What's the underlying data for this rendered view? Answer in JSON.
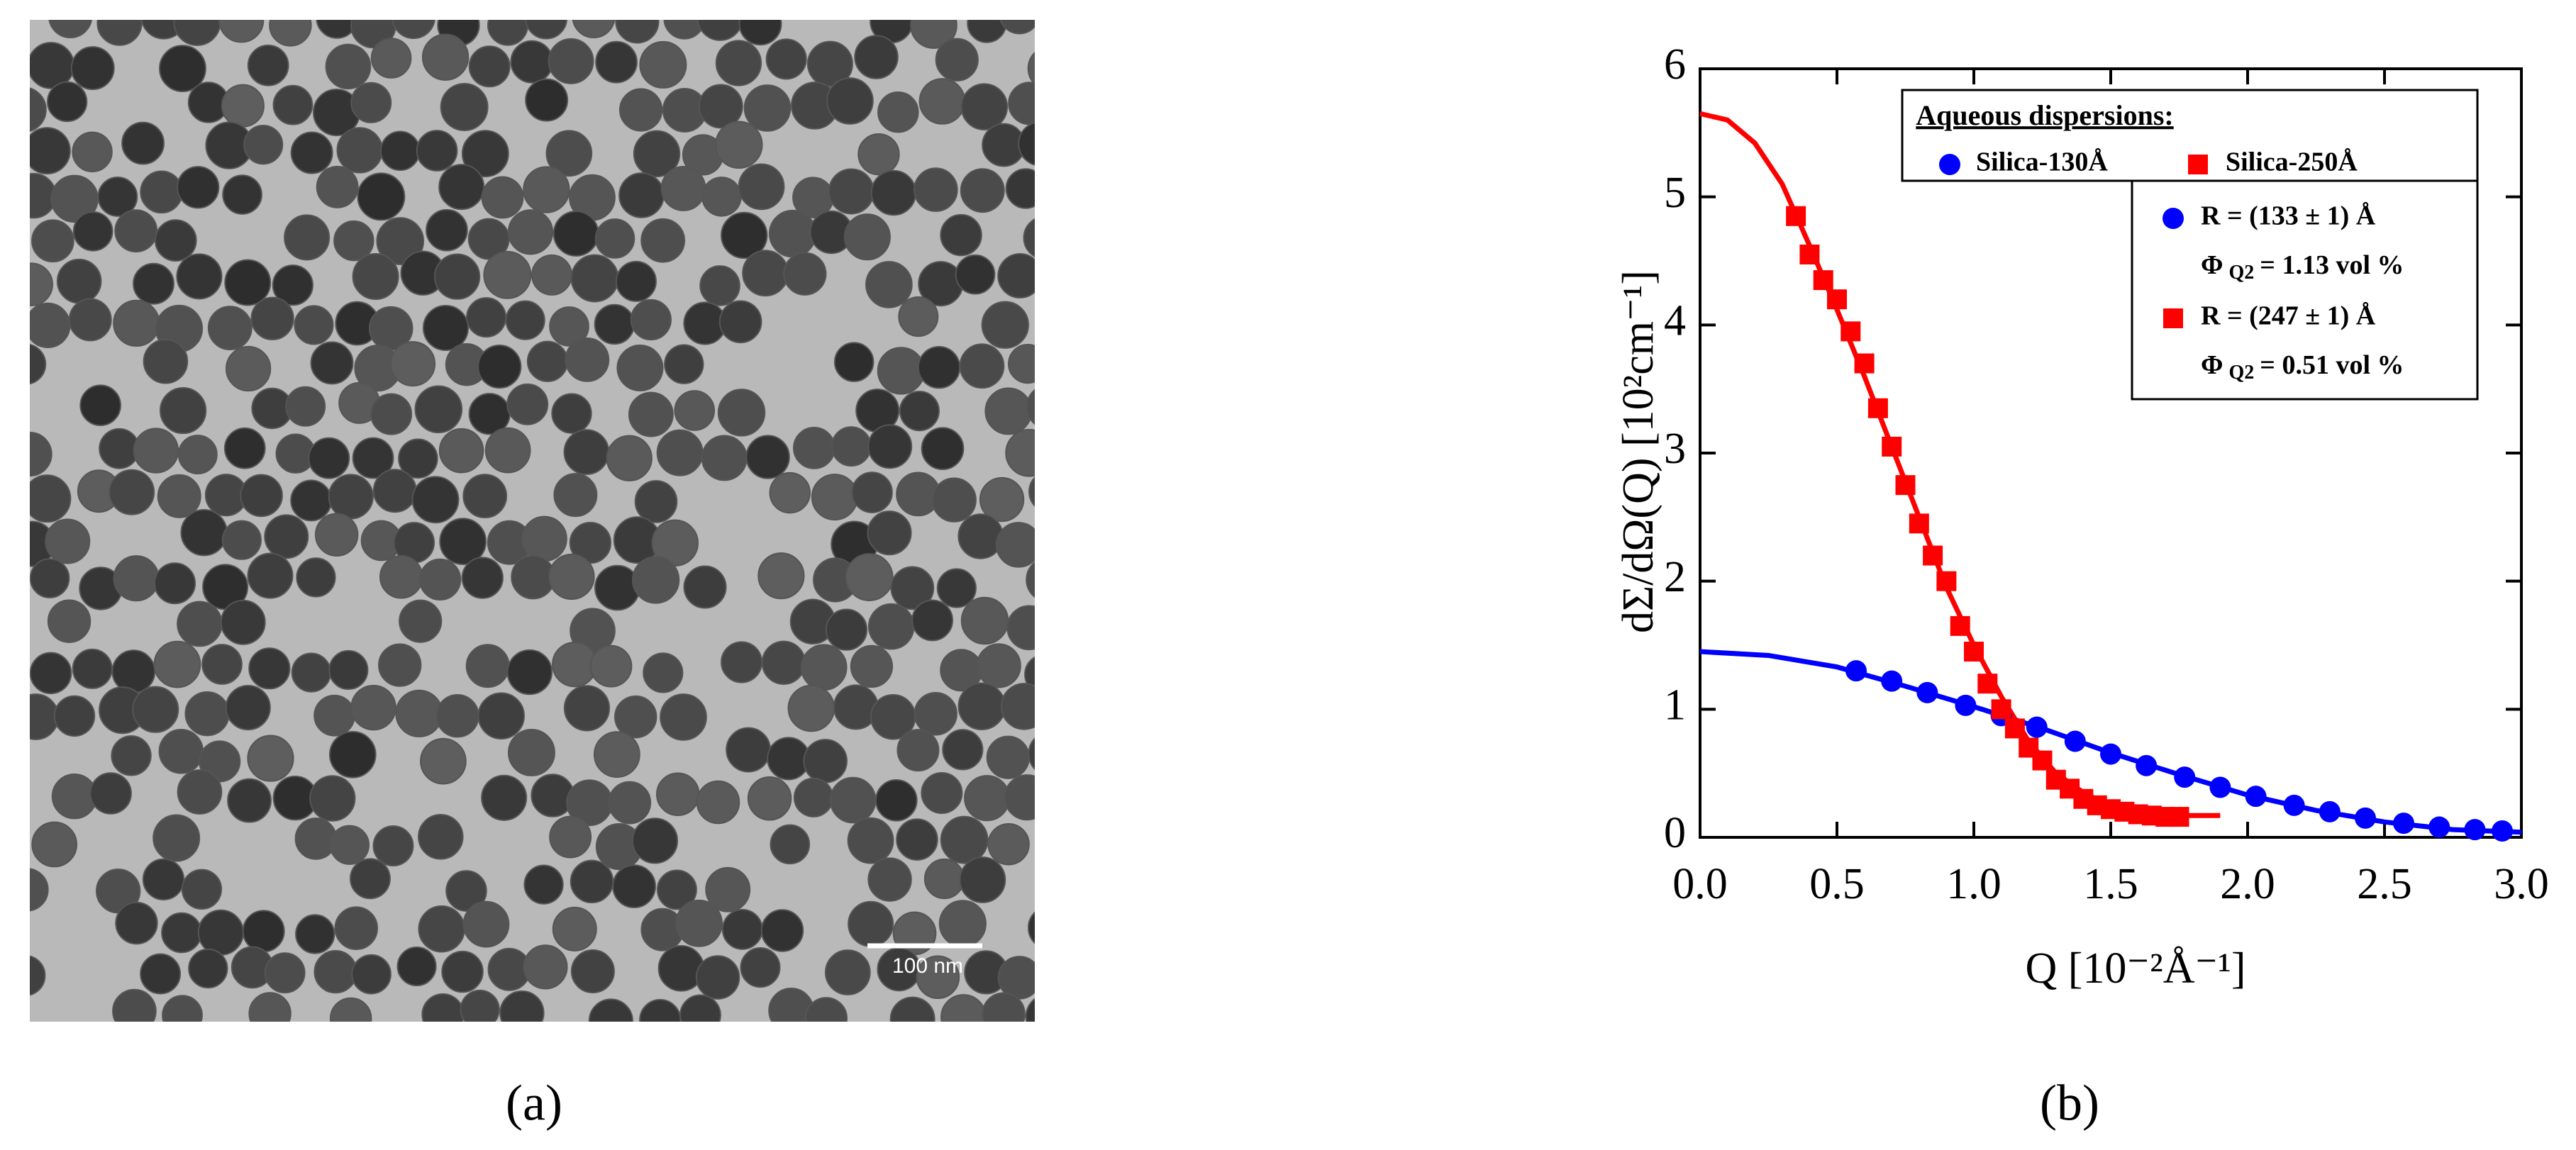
{
  "micrograph": {
    "caption": "(a)",
    "scale_bar_label": "100 nm"
  },
  "chart_data": {
    "type": "scatter",
    "caption": "(b)",
    "x_label": "Q [10⁻²Å⁻¹]",
    "y_label": "dΣ/dΩ(Q) [10²cm⁻¹]",
    "xlim": [
      0,
      3
    ],
    "ylim": [
      0,
      6
    ],
    "xticks": [
      {
        "value": 0,
        "label": "0.0"
      },
      0.5,
      {
        "value": 1,
        "label": "1.0"
      },
      1.5,
      {
        "value": 2,
        "label": "2.0"
      },
      2.5,
      {
        "value": 3,
        "label": "3.0"
      }
    ],
    "yticks": [
      0,
      1,
      2,
      3,
      4,
      5,
      6
    ],
    "legend_title": "Aqueous dispersions:",
    "legend": "upper right",
    "series": [
      {
        "name": "Silica-130Å",
        "color": "#0000ff",
        "marker": "circle",
        "x": [
          0.57,
          0.7,
          0.83,
          0.97,
          1.1,
          1.23,
          1.37,
          1.5,
          1.63,
          1.77,
          1.9,
          2.03,
          2.17,
          2.3,
          2.43,
          2.57,
          2.7,
          2.83,
          2.93
        ],
        "values": [
          1.3,
          1.22,
          1.13,
          1.03,
          0.95,
          0.86,
          0.75,
          0.65,
          0.56,
          0.47,
          0.39,
          0.32,
          0.25,
          0.2,
          0.15,
          0.11,
          0.08,
          0.06,
          0.05
        ]
      },
      {
        "name": "Silica-250Å",
        "color": "#ff0000",
        "marker": "square",
        "x": [
          0.35,
          0.4,
          0.45,
          0.5,
          0.55,
          0.6,
          0.65,
          0.7,
          0.75,
          0.8,
          0.85,
          0.9,
          0.95,
          1.0,
          1.05,
          1.1,
          1.15,
          1.2,
          1.25,
          1.3,
          1.35,
          1.4,
          1.45,
          1.5,
          1.55,
          1.6,
          1.65,
          1.7,
          1.75
        ],
        "values": [
          4.85,
          4.55,
          4.35,
          4.2,
          3.95,
          3.7,
          3.35,
          3.05,
          2.75,
          2.45,
          2.2,
          2.0,
          1.65,
          1.45,
          1.2,
          1.0,
          0.85,
          0.7,
          0.6,
          0.45,
          0.38,
          0.3,
          0.25,
          0.22,
          0.2,
          0.18,
          0.17,
          0.16,
          0.16
        ]
      }
    ],
    "fits": [
      {
        "name": "R = (133 ± 1) Å",
        "color": "#0000ff",
        "marker": "circle",
        "phi": {
          "symbol": "Φ",
          "subscript": "Q2",
          "text": "= 1.13 vol %"
        },
        "x": [
          0,
          0.25,
          0.5,
          0.75,
          1.0,
          1.25,
          1.5,
          1.75,
          2.0,
          2.25,
          2.5,
          2.75,
          3.0
        ],
        "values": [
          1.45,
          1.42,
          1.33,
          1.18,
          1.02,
          0.85,
          0.66,
          0.49,
          0.33,
          0.21,
          0.12,
          0.06,
          0.04
        ]
      },
      {
        "name": "R = (247 ± 1) Å",
        "color": "#ff0000",
        "marker": "square",
        "phi": {
          "symbol": "Φ",
          "subscript": "Q2",
          "text": "= 0.51 vol %"
        },
        "x": [
          0,
          0.1,
          0.2,
          0.3,
          0.4,
          0.5,
          0.6,
          0.7,
          0.8,
          0.9,
          1.0,
          1.1,
          1.2,
          1.3,
          1.4,
          1.5,
          1.6,
          1.7,
          1.8,
          1.9
        ],
        "values": [
          5.65,
          5.6,
          5.42,
          5.1,
          4.62,
          4.12,
          3.6,
          3.05,
          2.5,
          1.95,
          1.5,
          1.1,
          0.75,
          0.5,
          0.35,
          0.24,
          0.19,
          0.17,
          0.17,
          0.17
        ]
      }
    ]
  }
}
